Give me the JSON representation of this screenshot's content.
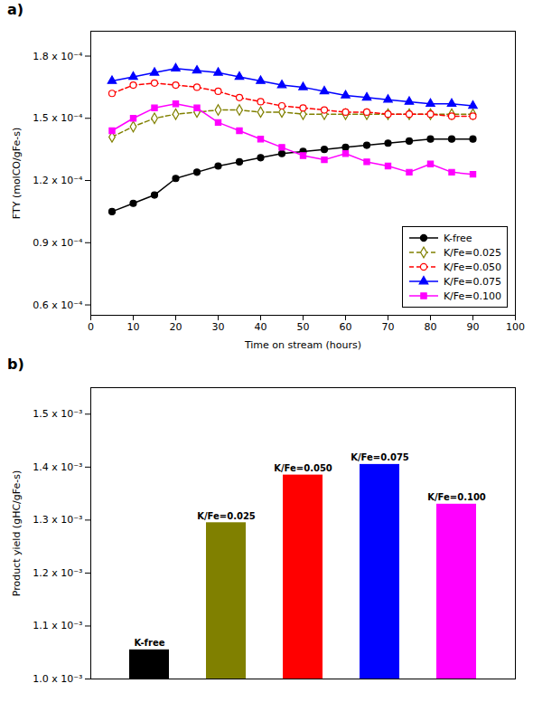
{
  "chart_data": [
    {
      "type": "line",
      "title": "a)",
      "x": [
        5,
        10,
        15,
        20,
        25,
        30,
        35,
        40,
        45,
        50,
        55,
        60,
        65,
        70,
        75,
        80,
        85,
        90
      ],
      "xlabel": "Time on stream (hours)",
      "ylabel": "FTY (molCO/gFe-s)",
      "xlim": [
        0,
        100
      ],
      "xticks": [
        0,
        10,
        20,
        30,
        40,
        50,
        60,
        70,
        80,
        90,
        100
      ],
      "ylim": [
        5.5e-05,
        0.000192
      ],
      "yticks": [
        {
          "value": 6e-05,
          "label": "0.6 x 10⁻⁴"
        },
        {
          "value": 9e-05,
          "label": "0.9 x 10⁻⁴"
        },
        {
          "value": 0.00012,
          "label": "1.2 x 10⁻⁴"
        },
        {
          "value": 0.00015,
          "label": "1.5 x 10⁻⁴"
        },
        {
          "value": 0.00018,
          "label": "1.8 x 10⁻⁴"
        }
      ],
      "legend": "lower right",
      "grid": false,
      "series": [
        {
          "name": "K-free",
          "color": "#000000",
          "marker": "circle",
          "line_style": "solid",
          "values": [
            0.000105,
            0.000109,
            0.000113,
            0.000121,
            0.000124,
            0.000127,
            0.000129,
            0.000131,
            0.000133,
            0.000134,
            0.000135,
            0.000136,
            0.000137,
            0.000138,
            0.000139,
            0.00014,
            0.00014,
            0.00014
          ]
        },
        {
          "name": "K/Fe=0.025",
          "color": "#808000",
          "marker": "diamond-open",
          "line_style": "dashed",
          "values": [
            0.000141,
            0.000146,
            0.00015,
            0.000152,
            0.000153,
            0.000154,
            0.000154,
            0.000153,
            0.000153,
            0.000152,
            0.000152,
            0.000152,
            0.000152,
            0.000152,
            0.000152,
            0.000152,
            0.000152,
            0.000152
          ]
        },
        {
          "name": "K/Fe=0.050",
          "color": "#ff0000",
          "marker": "circle-open",
          "line_style": "dashed",
          "values": [
            0.000162,
            0.000166,
            0.000167,
            0.000166,
            0.000165,
            0.000163,
            0.00016,
            0.000158,
            0.000156,
            0.000155,
            0.000154,
            0.000153,
            0.000153,
            0.000152,
            0.000152,
            0.000152,
            0.000151,
            0.000151
          ]
        },
        {
          "name": "K/Fe=0.075",
          "color": "#0000ff",
          "marker": "triangle",
          "line_style": "solid",
          "values": [
            0.000168,
            0.00017,
            0.000172,
            0.000174,
            0.000173,
            0.000172,
            0.00017,
            0.000168,
            0.000166,
            0.000165,
            0.000163,
            0.000161,
            0.00016,
            0.000159,
            0.000158,
            0.000157,
            0.000157,
            0.000156
          ]
        },
        {
          "name": "K/Fe=0.100",
          "color": "#ff00ff",
          "marker": "square",
          "line_style": "solid",
          "values": [
            0.000144,
            0.00015,
            0.000155,
            0.000157,
            0.000155,
            0.000148,
            0.000144,
            0.00014,
            0.000136,
            0.000132,
            0.00013,
            0.000133,
            0.000129,
            0.000127,
            0.000124,
            0.000128,
            0.000124,
            0.000123
          ]
        }
      ]
    },
    {
      "type": "bar",
      "title": "b)",
      "categories": [
        "K-free",
        "K/Fe=0.025",
        "K/Fe=0.050",
        "K/Fe=0.075",
        "K/Fe=0.100"
      ],
      "values": [
        0.001055,
        0.001295,
        0.001385,
        0.001405,
        0.00133
      ],
      "colors": [
        "#000000",
        "#808000",
        "#ff0000",
        "#0000ff",
        "#ff00ff"
      ],
      "ylabel": "Product yield (gHC/gFe-s)",
      "ylim": [
        0.001,
        0.00155
      ],
      "yticks": [
        {
          "value": 0.001,
          "label": "1.0 x 10⁻³"
        },
        {
          "value": 0.0011,
          "label": "1.1 x 10⁻³"
        },
        {
          "value": 0.0012,
          "label": "1.2 x 10⁻³"
        },
        {
          "value": 0.0013,
          "label": "1.3 x 10⁻³"
        },
        {
          "value": 0.0014,
          "label": "1.4 x 10⁻³"
        },
        {
          "value": 0.0015,
          "label": "1.5 x 10⁻³"
        }
      ],
      "tick_labels": "y",
      "grid": false
    }
  ]
}
